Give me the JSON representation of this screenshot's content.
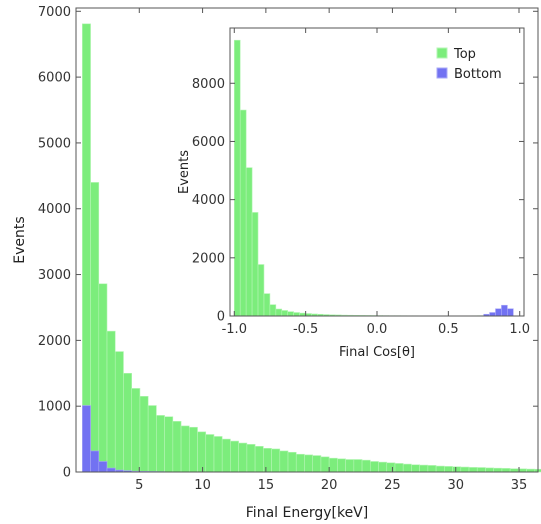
{
  "colors": {
    "top": "#7ced7c",
    "top_edge": "#b5f5b5",
    "bottom": "#7272f2",
    "bottom_edge": "#a9a9f7",
    "frame": "#555555"
  },
  "chart_data": [
    {
      "type": "bar",
      "role": "main",
      "xlabel": "Final Energy[keV]",
      "ylabel": "Events",
      "xlim": [
        0,
        36.5
      ],
      "ylim": [
        0,
        7050
      ],
      "xticks": [
        5,
        10,
        15,
        20,
        25,
        30,
        35
      ],
      "yticks": [
        0,
        1000,
        2000,
        3000,
        4000,
        5000,
        6000,
        7000
      ],
      "grid": false,
      "bin_start": 0.5,
      "bin_width": 0.65,
      "series": [
        {
          "name": "Top",
          "values": [
            6810,
            4400,
            2860,
            2140,
            1830,
            1500,
            1270,
            1150,
            1010,
            860,
            840,
            770,
            700,
            680,
            610,
            570,
            540,
            500,
            470,
            440,
            420,
            390,
            360,
            350,
            320,
            300,
            270,
            260,
            250,
            230,
            210,
            200,
            190,
            190,
            180,
            160,
            150,
            140,
            130,
            120,
            110,
            105,
            100,
            90,
            85,
            80,
            75,
            70,
            68,
            62,
            58,
            55,
            50,
            48,
            44,
            42,
            40,
            38,
            36,
            34,
            30,
            30
          ]
        },
        {
          "name": "Bottom",
          "values": [
            1010,
            320,
            160,
            60,
            30,
            20,
            12,
            10,
            8,
            6
          ]
        }
      ]
    },
    {
      "type": "bar",
      "role": "inset",
      "xlabel": "Final Cos[θ]",
      "ylabel": "Events",
      "xlim": [
        -1.03,
        1.03
      ],
      "ylim": [
        0,
        9900
      ],
      "xticks": [
        -1.0,
        -0.5,
        0.0,
        0.5,
        1.0
      ],
      "xtick_labels": [
        "-1.0",
        "-0.5",
        "0.0",
        "0.5",
        "1.0"
      ],
      "yticks": [
        0,
        2000,
        4000,
        6000,
        8000
      ],
      "grid": false,
      "legend_position": "top-right",
      "bin_start": -1.0,
      "bin_width": 0.0416,
      "series": [
        {
          "name": "Top",
          "values": [
            9480,
            7080,
            5100,
            3560,
            1770,
            770,
            390,
            240,
            190,
            150,
            120,
            100,
            85,
            70,
            60,
            50,
            42,
            36,
            30,
            26,
            22,
            20,
            18,
            16,
            14,
            12,
            10,
            10,
            9,
            8,
            8,
            7,
            7,
            6,
            6,
            5,
            5,
            5,
            5,
            6,
            8,
            10,
            12,
            14,
            12,
            8,
            4,
            0
          ]
        },
        {
          "name": "Bottom",
          "values": [
            0,
            0,
            0,
            0,
            0,
            0,
            0,
            0,
            0,
            0,
            0,
            0,
            0,
            0,
            0,
            0,
            0,
            0,
            0,
            0,
            0,
            0,
            0,
            0,
            0,
            0,
            0,
            0,
            0,
            0,
            0,
            0,
            0,
            0,
            0,
            0,
            0,
            0,
            0,
            0,
            0,
            0,
            60,
            120,
            250,
            370,
            250,
            0
          ]
        }
      ]
    }
  ]
}
